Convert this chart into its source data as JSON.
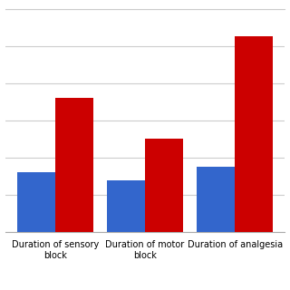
{
  "categories": [
    "Duration of sensory\nblock",
    "Duration of motor\nblock",
    "Duration of analgesia"
  ],
  "blue_values": [
    32,
    28,
    35
  ],
  "red_values": [
    72,
    50,
    105
  ],
  "blue_color": "#3366CC",
  "red_color": "#CC0000",
  "background_color": "#FFFFFF",
  "grid_color": "#CCCCCC",
  "ylim": [
    0,
    120
  ],
  "bar_width": 0.42,
  "figsize": [
    3.2,
    3.2
  ],
  "dpi": 100
}
